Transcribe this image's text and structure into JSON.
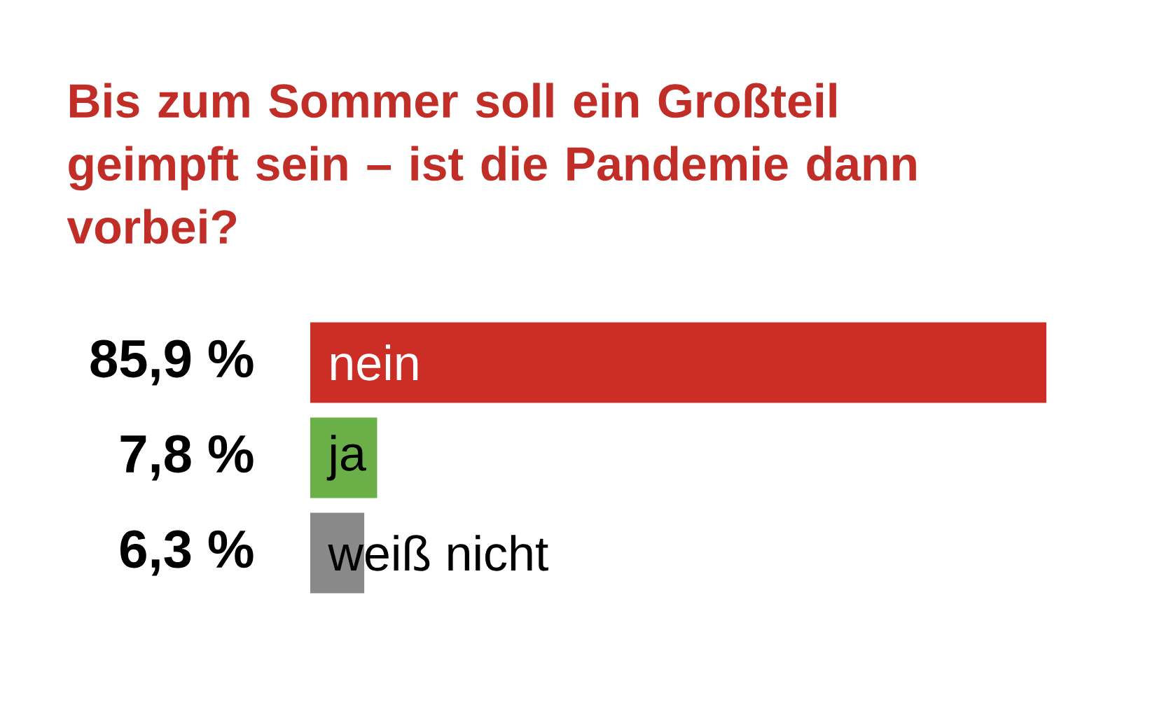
{
  "chart_data": {
    "type": "bar",
    "orientation": "horizontal",
    "title": "Bis zum Sommer soll ein Großteil geimpft sein – ist die Pandemie dann vorbei?",
    "categories": [
      "nein",
      "ja",
      "weiß nicht"
    ],
    "values": [
      85.9,
      7.8,
      6.3
    ],
    "value_labels": [
      "85,9 %",
      "7,8 %",
      "6,3 %"
    ],
    "colors": [
      "#cc2e26",
      "#6aaf47",
      "#898989"
    ]
  }
}
